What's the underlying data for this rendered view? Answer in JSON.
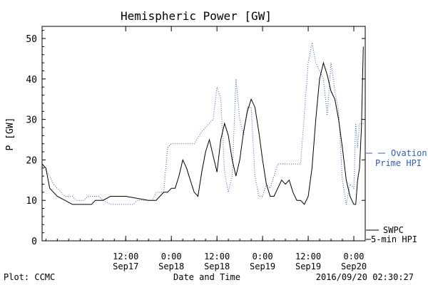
{
  "chart_data": {
    "type": "line",
    "title": "Hemispheric Power [GW]",
    "ylabel": "P [GW]",
    "xlabel": "Date and Time",
    "ylim": [
      0,
      53
    ],
    "yticks": [
      0,
      10,
      20,
      30,
      40,
      50
    ],
    "xlim": [
      "2016-09-16 14:00",
      "2016-09-20 03:00"
    ],
    "xticks": [
      {
        "t": "2016-09-17 12:00",
        "line1": "12:00",
        "line2": "Sep17"
      },
      {
        "t": "2016-09-18 00:00",
        "line1": "0:00",
        "line2": "Sep18"
      },
      {
        "t": "2016-09-18 12:00",
        "line1": "12:00",
        "line2": "Sep18"
      },
      {
        "t": "2016-09-19 00:00",
        "line1": "0:00",
        "line2": "Sep19"
      },
      {
        "t": "2016-09-19 12:00",
        "line1": "12:00",
        "line2": "Sep19"
      },
      {
        "t": "2016-09-20 00:00",
        "line1": "0:00",
        "line2": "Sep20"
      }
    ],
    "series": [
      {
        "name": "SWPC 5-min HPI",
        "legend": [
          "SWPC",
          "5-min HPI"
        ],
        "color": "#000000",
        "style": "solid",
        "points": [
          [
            "2016-09-16 14:00",
            19
          ],
          [
            "2016-09-16 15:00",
            18
          ],
          [
            "2016-09-16 16:00",
            13
          ],
          [
            "2016-09-16 18:00",
            11
          ],
          [
            "2016-09-16 20:00",
            10
          ],
          [
            "2016-09-16 22:00",
            9
          ],
          [
            "2016-09-17 00:00",
            9
          ],
          [
            "2016-09-17 03:00",
            9
          ],
          [
            "2016-09-17 04:00",
            10
          ],
          [
            "2016-09-17 06:00",
            10
          ],
          [
            "2016-09-17 08:00",
            11
          ],
          [
            "2016-09-17 12:00",
            11
          ],
          [
            "2016-09-17 18:00",
            10
          ],
          [
            "2016-09-17 20:00",
            10
          ],
          [
            "2016-09-17 21:00",
            11
          ],
          [
            "2016-09-17 22:00",
            12
          ],
          [
            "2016-09-17 23:00",
            12
          ],
          [
            "2016-09-18 00:00",
            13
          ],
          [
            "2016-09-18 01:00",
            13
          ],
          [
            "2016-09-18 02:00",
            16
          ],
          [
            "2016-09-18 03:00",
            20
          ],
          [
            "2016-09-18 04:00",
            18
          ],
          [
            "2016-09-18 05:00",
            15
          ],
          [
            "2016-09-18 06:00",
            12
          ],
          [
            "2016-09-18 07:00",
            11
          ],
          [
            "2016-09-18 08:00",
            17
          ],
          [
            "2016-09-18 09:00",
            22
          ],
          [
            "2016-09-18 10:00",
            25
          ],
          [
            "2016-09-18 11:00",
            21
          ],
          [
            "2016-09-18 12:00",
            17
          ],
          [
            "2016-09-18 13:00",
            25
          ],
          [
            "2016-09-18 14:00",
            29
          ],
          [
            "2016-09-18 15:00",
            26
          ],
          [
            "2016-09-18 16:00",
            20
          ],
          [
            "2016-09-18 17:00",
            16
          ],
          [
            "2016-09-18 18:00",
            20
          ],
          [
            "2016-09-18 19:00",
            27
          ],
          [
            "2016-09-18 20:00",
            32
          ],
          [
            "2016-09-18 21:00",
            35
          ],
          [
            "2016-09-18 22:00",
            33
          ],
          [
            "2016-09-18 23:00",
            27
          ],
          [
            "2016-09-19 00:00",
            20
          ],
          [
            "2016-09-19 01:00",
            14
          ],
          [
            "2016-09-19 02:00",
            11
          ],
          [
            "2016-09-19 03:00",
            11
          ],
          [
            "2016-09-19 04:00",
            13
          ],
          [
            "2016-09-19 05:00",
            15
          ],
          [
            "2016-09-19 06:00",
            14
          ],
          [
            "2016-09-19 07:00",
            15
          ],
          [
            "2016-09-19 08:00",
            12
          ],
          [
            "2016-09-19 09:00",
            10
          ],
          [
            "2016-09-19 10:00",
            10
          ],
          [
            "2016-09-19 11:00",
            9
          ],
          [
            "2016-09-19 12:00",
            11
          ],
          [
            "2016-09-19 13:00",
            18
          ],
          [
            "2016-09-19 14:00",
            30
          ],
          [
            "2016-09-19 15:00",
            40
          ],
          [
            "2016-09-19 16:00",
            44
          ],
          [
            "2016-09-19 17:00",
            41
          ],
          [
            "2016-09-19 18:00",
            37
          ],
          [
            "2016-09-19 19:00",
            35
          ],
          [
            "2016-09-19 20:00",
            30
          ],
          [
            "2016-09-19 21:00",
            23
          ],
          [
            "2016-09-19 22:00",
            15
          ],
          [
            "2016-09-19 23:00",
            11
          ],
          [
            "2016-09-20 00:00",
            9
          ],
          [
            "2016-09-20 00:30",
            9
          ],
          [
            "2016-09-20 01:00",
            15
          ],
          [
            "2016-09-20 01:30",
            18
          ],
          [
            "2016-09-20 02:00",
            28
          ],
          [
            "2016-09-20 02:30",
            48
          ]
        ]
      },
      {
        "name": "Ovation Prime HPI",
        "legend": [
          "Ovation",
          "Prime HPI"
        ],
        "color": "#2f5fb5",
        "style": "dotted",
        "points": [
          [
            "2016-09-16 14:00",
            19
          ],
          [
            "2016-09-16 16:00",
            16
          ],
          [
            "2016-09-16 17:00",
            14
          ],
          [
            "2016-09-16 20:00",
            11
          ],
          [
            "2016-09-16 22:00",
            11
          ],
          [
            "2016-09-16 23:00",
            10
          ],
          [
            "2016-09-17 01:00",
            10
          ],
          [
            "2016-09-17 02:00",
            11
          ],
          [
            "2016-09-17 05:00",
            11
          ],
          [
            "2016-09-17 06:00",
            10
          ],
          [
            "2016-09-17 08:00",
            9
          ],
          [
            "2016-09-17 14:00",
            9
          ],
          [
            "2016-09-17 15:00",
            10
          ],
          [
            "2016-09-17 19:00",
            10
          ],
          [
            "2016-09-17 20:00",
            12
          ],
          [
            "2016-09-17 22:00",
            12
          ],
          [
            "2016-09-17 23:00",
            23
          ],
          [
            "2016-09-18 00:00",
            24
          ],
          [
            "2016-09-18 06:00",
            24
          ],
          [
            "2016-09-18 08:00",
            27
          ],
          [
            "2016-09-18 11:00",
            30
          ],
          [
            "2016-09-18 12:00",
            38
          ],
          [
            "2016-09-18 13:00",
            35
          ],
          [
            "2016-09-18 14:00",
            17
          ],
          [
            "2016-09-18 15:00",
            12
          ],
          [
            "2016-09-18 16:00",
            16
          ],
          [
            "2016-09-18 17:00",
            40
          ],
          [
            "2016-09-18 18:00",
            30
          ],
          [
            "2016-09-18 19:00",
            26
          ],
          [
            "2016-09-18 20:00",
            33
          ],
          [
            "2016-09-18 21:00",
            33
          ],
          [
            "2016-09-18 22:00",
            16
          ],
          [
            "2016-09-18 23:00",
            11
          ],
          [
            "2016-09-19 00:00",
            11
          ],
          [
            "2016-09-19 01:00",
            14
          ],
          [
            "2016-09-19 02:00",
            13
          ],
          [
            "2016-09-19 04:00",
            19
          ],
          [
            "2016-09-19 10:00",
            19
          ],
          [
            "2016-09-19 12:00",
            44
          ],
          [
            "2016-09-19 13:00",
            49
          ],
          [
            "2016-09-19 14:00",
            44
          ],
          [
            "2016-09-19 16:00",
            40
          ],
          [
            "2016-09-19 17:00",
            31
          ],
          [
            "2016-09-19 18:00",
            44
          ],
          [
            "2016-09-19 19:00",
            37
          ],
          [
            "2016-09-19 20:00",
            32
          ],
          [
            "2016-09-19 21:00",
            15
          ],
          [
            "2016-09-19 22:00",
            9
          ],
          [
            "2016-09-19 23:00",
            14
          ],
          [
            "2016-09-20 00:00",
            13
          ],
          [
            "2016-09-20 00:30",
            29
          ],
          [
            "2016-09-20 01:00",
            23
          ],
          [
            "2016-09-20 01:30",
            29
          ],
          [
            "2016-09-20 03:00",
            29
          ]
        ]
      }
    ]
  },
  "footer": {
    "plot_source": "Plot: CCMC",
    "timestamp": "2016/09/20 02:30:27"
  }
}
